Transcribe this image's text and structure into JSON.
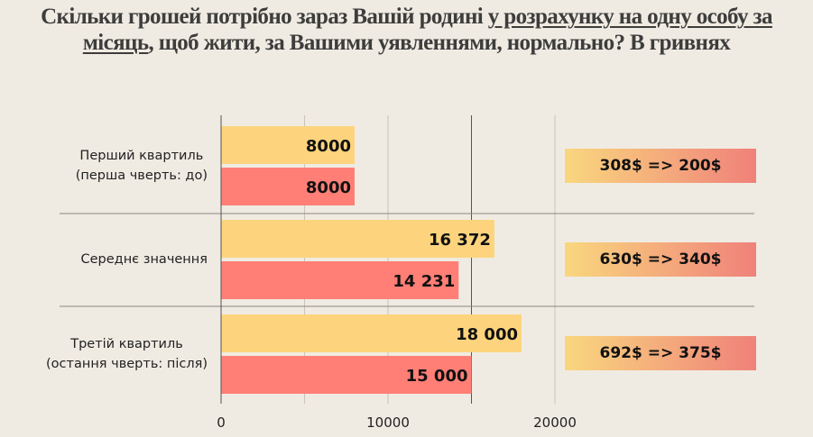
{
  "title": {
    "part1": "Скільки грошей потрібно зараз Вашій родині ",
    "underlined": "у розрахунку на одну особу за місяць",
    "part2": ", щоб жити, за Вашими уявленнями, нормально? В гривнях"
  },
  "chart_data": {
    "type": "bar",
    "orientation": "horizontal",
    "categories": [
      [
        "Перший квартиль",
        "(перша чверть: до)"
      ],
      [
        "Середнє значення"
      ],
      [
        "Третій квартиль",
        "(остання чверть: після)"
      ]
    ],
    "series": [
      {
        "values": [
          8000,
          16372,
          18000
        ],
        "labels": [
          "8000",
          "16 372",
          "18 000"
        ],
        "color": "#fdd47d"
      },
      {
        "values": [
          8000,
          14231,
          15000
        ],
        "labels": [
          "8000",
          "14 231",
          "15 000"
        ],
        "color": "#ff7f76"
      }
    ],
    "xlim": [
      0,
      22000
    ],
    "xticks": [
      0,
      10000,
      20000
    ],
    "xtick_labels": [
      "0",
      "10000",
      "20000"
    ],
    "grid": true,
    "annotations": [
      "308$ => 200$",
      "630$ => 340$",
      "692$ => 375$"
    ]
  }
}
